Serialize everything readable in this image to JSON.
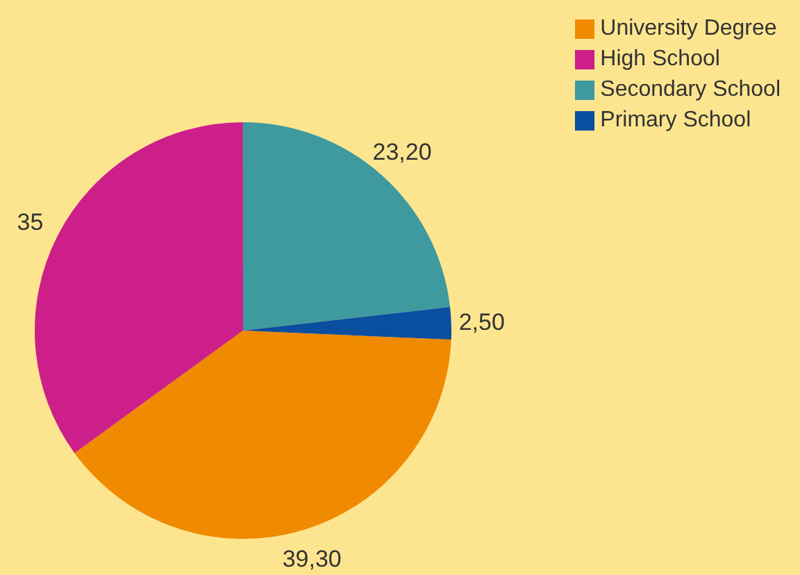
{
  "chart_data": {
    "type": "pie",
    "categories": [
      "University Degree",
      "High School",
      "Secondary School",
      "Primary School"
    ],
    "values": [
      39.3,
      35,
      23.2,
      2.5
    ],
    "colors": [
      "#f08a00",
      "#cc1f8a",
      "#3f9aa0",
      "#0a4ea0"
    ],
    "value_labels": [
      "39,30",
      "35",
      "23,20",
      "2,50"
    ],
    "legend": "top right"
  }
}
